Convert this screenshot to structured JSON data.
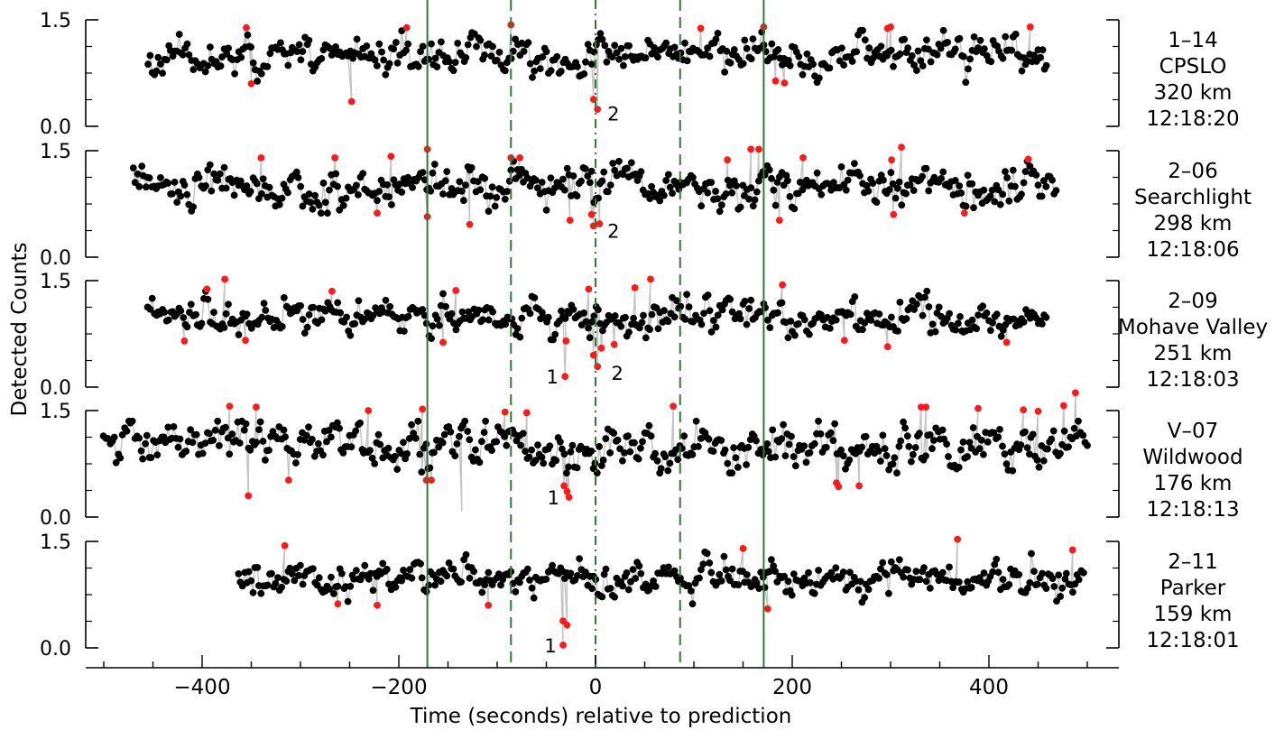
{
  "chart_data": {
    "type": "scatter",
    "xlabel": "Time (seconds) relative to prediction",
    "ylabel": "Detected Counts",
    "xlim": [
      -520,
      525
    ],
    "x_ticks": [
      -400,
      -200,
      0,
      200,
      400
    ],
    "x_tick_labels": [
      "−400",
      "−200",
      "0",
      "200",
      "400"
    ],
    "y_ticks": [
      0.0,
      1.5
    ],
    "y_tick_labels": [
      "0.0",
      "1.5"
    ],
    "reference_lines": [
      {
        "x": -171,
        "style": "solid"
      },
      {
        "x": -86,
        "style": "dashed"
      },
      {
        "x": 0,
        "style": "dashdot"
      },
      {
        "x": 86,
        "style": "dashed"
      },
      {
        "x": 171,
        "style": "solid"
      }
    ],
    "colors": {
      "point": "#000000",
      "flagged": "#ff1a1a",
      "trace": "#c4c4c4",
      "line": "#2e7d32"
    },
    "panels": [
      {
        "id": "1–14",
        "site": "CPSLO",
        "distance": "320 km",
        "time": "12:18:20",
        "t_start": -455,
        "t_end": 460,
        "seed": 11,
        "noise": 0.11,
        "events": [
          {
            "x": -2,
            "y": 0.26,
            "label": "2"
          }
        ],
        "flagged": [
          [
            -355,
            1.39
          ],
          [
            -350,
            0.6
          ],
          [
            -248,
            0.35
          ],
          [
            -192,
            1.39
          ],
          [
            -86,
            1.43
          ],
          [
            -2,
            0.38
          ],
          [
            2,
            0.24
          ],
          [
            107,
            1.38
          ],
          [
            171,
            1.4
          ],
          [
            183,
            0.64
          ],
          [
            192,
            0.61
          ],
          [
            297,
            1.38
          ],
          [
            300,
            1.4
          ],
          [
            442,
            1.4
          ]
        ],
        "spikes": [
          {
            "x": 412,
            "y": 0.95
          }
        ]
      },
      {
        "id": "2–06",
        "site": "Searchlight",
        "distance": "298 km",
        "time": "12:18:06",
        "t_start": -470,
        "t_end": 470,
        "seed": 23,
        "noise": 0.13,
        "events": [
          {
            "x": -2,
            "y": 0.45,
            "label": "2"
          }
        ],
        "flagged": [
          [
            -340,
            1.4
          ],
          [
            -265,
            1.4
          ],
          [
            -222,
            0.62
          ],
          [
            -208,
            1.42
          ],
          [
            -171,
            1.52
          ],
          [
            -171,
            0.57
          ],
          [
            -128,
            0.46
          ],
          [
            -86,
            1.4
          ],
          [
            -77,
            1.4
          ],
          [
            -26,
            0.52
          ],
          [
            -4,
            0.6
          ],
          [
            -2,
            0.44
          ],
          [
            4,
            0.47
          ],
          [
            134,
            1.37
          ],
          [
            158,
            1.52
          ],
          [
            166,
            1.52
          ],
          [
            187,
            0.52
          ],
          [
            211,
            1.4
          ],
          [
            301,
            1.37
          ],
          [
            303,
            0.6
          ],
          [
            311,
            1.55
          ],
          [
            375,
            0.62
          ],
          [
            440,
            1.38
          ]
        ],
        "spikes": []
      },
      {
        "id": "2–09",
        "site": "Mohave Valley",
        "distance": "251 km",
        "time": "12:18:03",
        "t_start": -455,
        "t_end": 460,
        "seed": 37,
        "noise": 0.11,
        "events": [
          {
            "x": -31,
            "y": 0.15,
            "label": "1"
          },
          {
            "x": 2,
            "y": 0.28,
            "label": "2"
          }
        ],
        "flagged": [
          [
            -395,
            1.38
          ],
          [
            -377,
            1.52
          ],
          [
            -418,
            0.65
          ],
          [
            -356,
            0.66
          ],
          [
            -268,
            1.35
          ],
          [
            -155,
            0.63
          ],
          [
            -142,
            1.36
          ],
          [
            -31,
            0.15
          ],
          [
            -30,
            0.65
          ],
          [
            -7,
            1.38
          ],
          [
            -2,
            0.45
          ],
          [
            2,
            0.29
          ],
          [
            6,
            0.55
          ],
          [
            19,
            0.6
          ],
          [
            40,
            1.4
          ],
          [
            56,
            1.52
          ],
          [
            190,
            1.44
          ],
          [
            253,
            0.66
          ],
          [
            297,
            0.57
          ],
          [
            418,
            0.63
          ]
        ],
        "spikes": []
      },
      {
        "id": "V–07",
        "site": "Wildwood",
        "distance": "176 km",
        "time": "12:18:13",
        "t_start": -500,
        "t_end": 500,
        "seed": 53,
        "noise": 0.14,
        "events": [
          {
            "x": -30,
            "y": 0.28,
            "label": "1"
          }
        ],
        "flagged": [
          [
            -372,
            1.56
          ],
          [
            -353,
            0.3
          ],
          [
            -345,
            1.55
          ],
          [
            -312,
            0.52
          ],
          [
            -231,
            1.5
          ],
          [
            -176,
            1.52
          ],
          [
            -167,
            0.52
          ],
          [
            -172,
            0.52
          ],
          [
            -92,
            1.48
          ],
          [
            -70,
            1.47
          ],
          [
            -32,
            0.44
          ],
          [
            -29,
            0.36
          ],
          [
            -27,
            0.28
          ],
          [
            79,
            1.56
          ],
          [
            245,
            0.48
          ],
          [
            247,
            0.43
          ],
          [
            268,
            0.44
          ],
          [
            331,
            1.55
          ],
          [
            336,
            1.55
          ],
          [
            389,
            1.53
          ],
          [
            435,
            1.51
          ],
          [
            450,
            1.49
          ],
          [
            476,
            1.57
          ],
          [
            488,
            1.75
          ]
        ],
        "spikes": [
          {
            "x": -136,
            "y": 0.08
          }
        ]
      },
      {
        "id": "2–11",
        "site": "Parker",
        "distance": "159 km",
        "time": "12:18:01",
        "t_start": -363,
        "t_end": 497,
        "seed": 71,
        "noise": 0.11,
        "events": [
          {
            "x": -33,
            "y": 0.04,
            "label": "1"
          }
        ],
        "flagged": [
          [
            -316,
            1.44
          ],
          [
            -262,
            0.62
          ],
          [
            -222,
            0.6
          ],
          [
            -109,
            0.6
          ],
          [
            -33,
            0.38
          ],
          [
            -29,
            0.32
          ],
          [
            -33,
            0.04
          ],
          [
            150,
            1.4
          ],
          [
            175,
            0.55
          ],
          [
            368,
            1.53
          ],
          [
            485,
            1.38
          ]
        ],
        "spikes": []
      }
    ]
  }
}
